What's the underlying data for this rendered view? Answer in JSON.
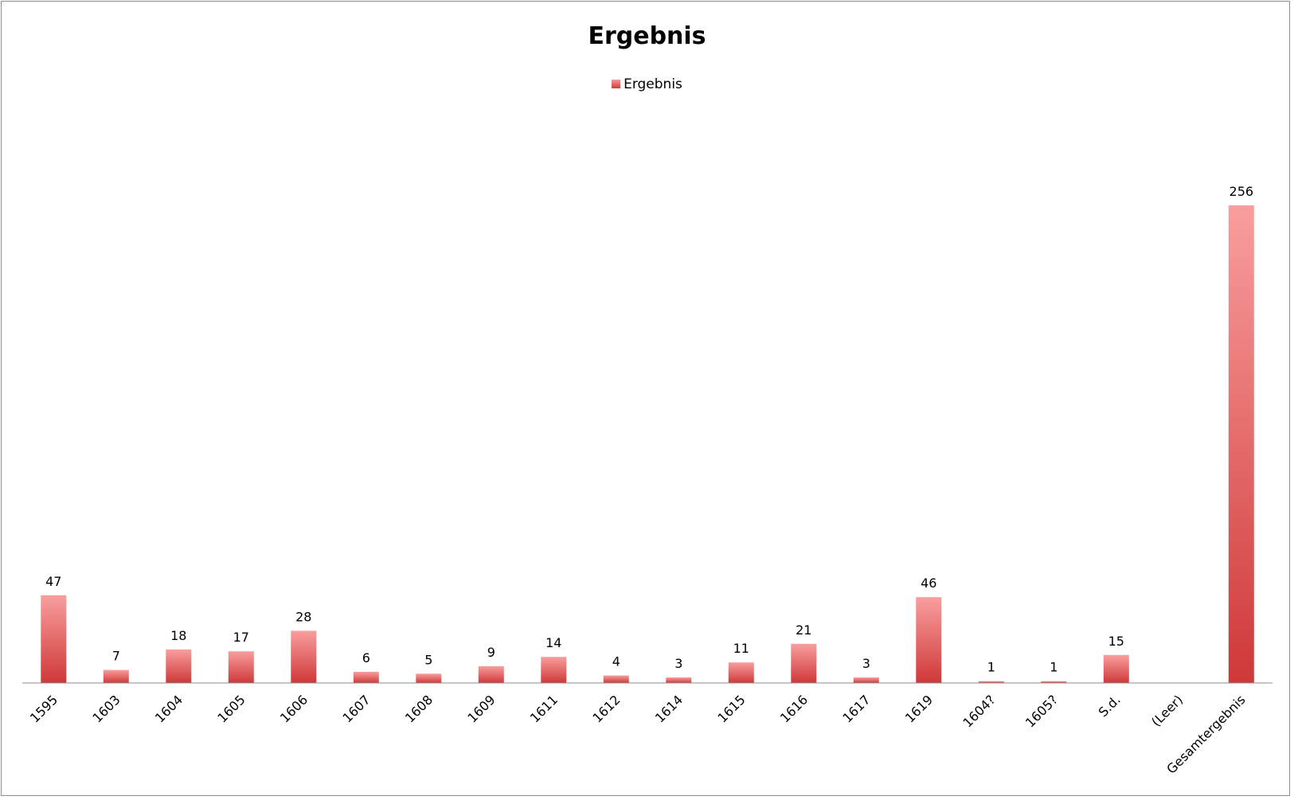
{
  "chart_data": {
    "type": "bar",
    "title": "Ergebnis",
    "legend": {
      "position": "top-center",
      "entries": [
        "Ergebnis"
      ]
    },
    "categories": [
      "1595",
      "1603",
      "1604",
      "1605",
      "1606",
      "1607",
      "1608",
      "1609",
      "1611",
      "1612",
      "1614",
      "1615",
      "1616",
      "1617",
      "1619",
      "1604?",
      "1605?",
      "S.d.",
      "(Leer)",
      "Gesamtergebnis"
    ],
    "series": [
      {
        "name": "Ergebnis",
        "values": [
          47,
          7,
          18,
          17,
          28,
          6,
          5,
          9,
          14,
          4,
          3,
          11,
          21,
          3,
          46,
          1,
          1,
          15,
          null,
          256
        ]
      }
    ],
    "xlabel": "",
    "ylabel": "",
    "ylim": [
      0,
      256
    ],
    "grid": false,
    "colors": {
      "bar_top": "#f99e9e",
      "bar_bottom": "#cf3838",
      "axis": "#8c8c8c"
    }
  }
}
